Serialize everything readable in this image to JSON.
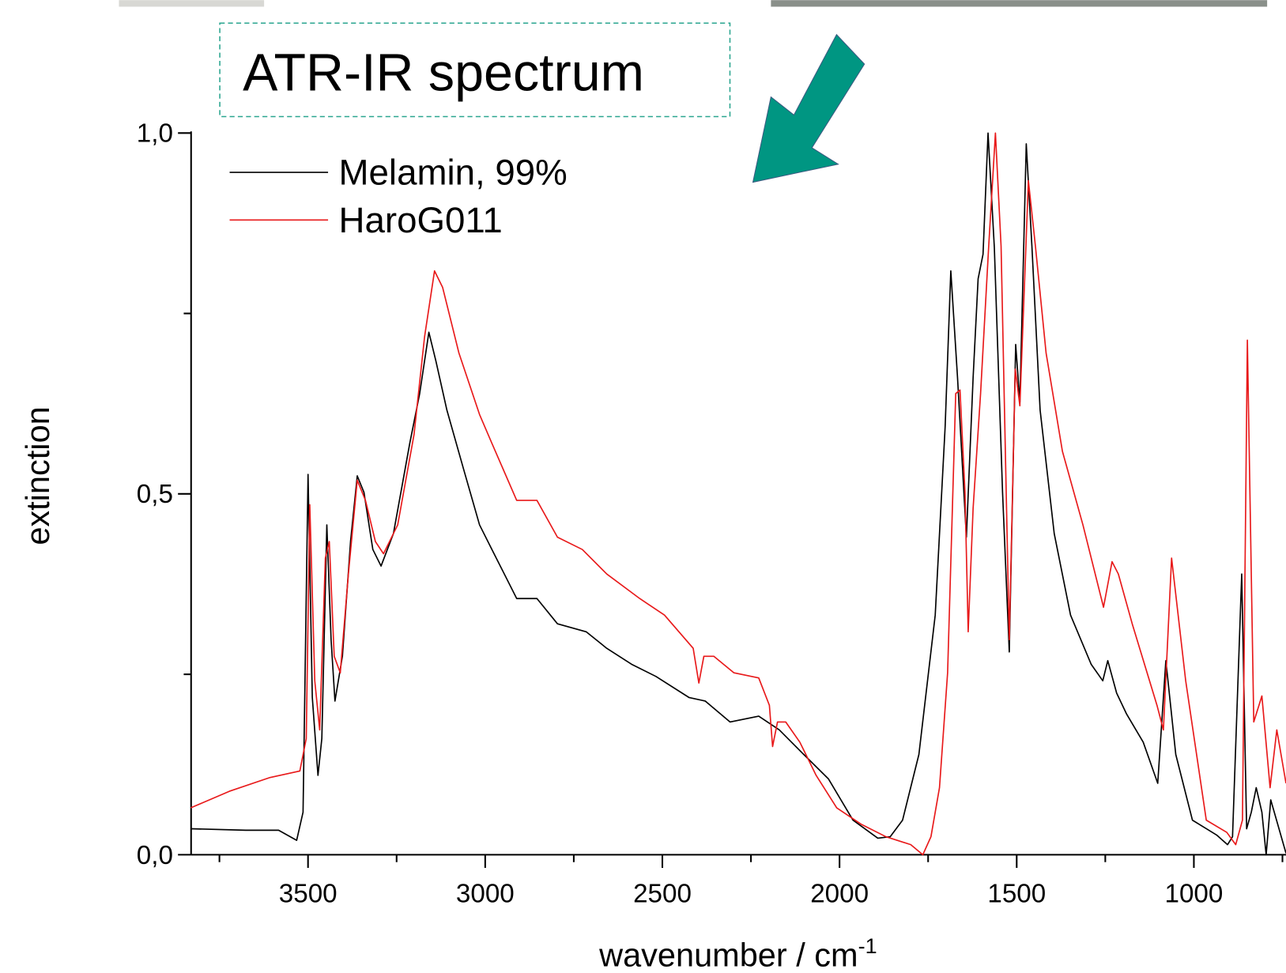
{
  "title": "ATR-IR spectrum",
  "chart_data": {
    "type": "line",
    "y_label": "extinction",
    "x_label": "wavenumber / cm",
    "x_label_sup": "-1",
    "xlim": [
      3830,
      740
    ],
    "ylim": [
      0,
      1.0
    ],
    "xticks": [
      3500,
      3000,
      2500,
      2000,
      1500,
      1000
    ],
    "xticks_minor": [
      3750,
      3250,
      2750,
      2250,
      1750,
      1250,
      750
    ],
    "yticks": [
      {
        "value": 0,
        "label": "0,0"
      },
      {
        "value": 0.5,
        "label": "0,5"
      },
      {
        "value": 1.0,
        "label": "1,0"
      }
    ],
    "yticks_minor": [
      0.25,
      0.75
    ],
    "legend": "upper left",
    "series": [
      {
        "name": "Melamin, 99%",
        "color": "#000000",
        "x": [
          3831,
          3676,
          3583,
          3532,
          3514,
          3500,
          3488,
          3472,
          3461,
          3447,
          3435,
          3424,
          3403,
          3380,
          3361,
          3342,
          3317,
          3294,
          3259,
          3213,
          3185,
          3159,
          3139,
          3108,
          3062,
          3016,
          2981,
          2911,
          2854,
          2796,
          2715,
          2657,
          2587,
          2518,
          2425,
          2379,
          2309,
          2228,
          2170,
          2101,
          2031,
          1962,
          1892,
          1857,
          1822,
          1776,
          1730,
          1702,
          1686,
          1667,
          1642,
          1623,
          1609,
          1595,
          1581,
          1563,
          1540,
          1521,
          1503,
          1491,
          1473,
          1457,
          1434,
          1394,
          1348,
          1290,
          1257,
          1243,
          1218,
          1190,
          1143,
          1102,
          1079,
          1051,
          1004,
          935,
          905,
          891,
          865,
          851,
          838,
          824,
          808,
          796,
          783,
          740
        ],
        "values": [
          0.036,
          0.034,
          0.034,
          0.02,
          0.059,
          0.527,
          0.218,
          0.11,
          0.161,
          0.457,
          0.298,
          0.213,
          0.275,
          0.434,
          0.525,
          0.502,
          0.423,
          0.4,
          0.445,
          0.57,
          0.639,
          0.724,
          0.684,
          0.616,
          0.536,
          0.457,
          0.423,
          0.355,
          0.355,
          0.32,
          0.309,
          0.286,
          0.264,
          0.247,
          0.218,
          0.213,
          0.184,
          0.192,
          0.173,
          0.139,
          0.105,
          0.048,
          0.023,
          0.025,
          0.048,
          0.139,
          0.332,
          0.593,
          0.809,
          0.661,
          0.44,
          0.661,
          0.798,
          0.832,
          1.0,
          0.841,
          0.502,
          0.281,
          0.707,
          0.627,
          0.985,
          0.843,
          0.616,
          0.445,
          0.332,
          0.264,
          0.241,
          0.269,
          0.224,
          0.195,
          0.156,
          0.099,
          0.269,
          0.139,
          0.048,
          0.027,
          0.014,
          0.025,
          0.389,
          0.036,
          0.059,
          0.093,
          0.059,
          0.0,
          0.076,
          0.002
        ]
      },
      {
        "name": "HaroG011",
        "color": "#e8191a",
        "x": [
          3831,
          3722,
          3607,
          3523,
          3505,
          3495,
          3481,
          3467,
          3451,
          3440,
          3426,
          3409,
          3386,
          3361,
          3338,
          3310,
          3287,
          3247,
          3201,
          3171,
          3143,
          3120,
          3074,
          3016,
          2981,
          2911,
          2854,
          2796,
          2726,
          2657,
          2564,
          2494,
          2413,
          2397,
          2383,
          2355,
          2298,
          2228,
          2198,
          2189,
          2175,
          2152,
          2112,
          2066,
          2008,
          1938,
          1869,
          1799,
          1765,
          1742,
          1718,
          1695,
          1672,
          1660,
          1646,
          1637,
          1623,
          1602,
          1579,
          1560,
          1544,
          1521,
          1504,
          1491,
          1467,
          1447,
          1417,
          1371,
          1313,
          1255,
          1231,
          1213,
          1174,
          1104,
          1086,
          1063,
          1023,
          965,
          907,
          882,
          863,
          849,
          831,
          808,
          785,
          766,
          740
        ],
        "values": [
          0.065,
          0.088,
          0.107,
          0.116,
          0.161,
          0.485,
          0.241,
          0.173,
          0.411,
          0.434,
          0.275,
          0.252,
          0.389,
          0.519,
          0.491,
          0.434,
          0.417,
          0.457,
          0.582,
          0.718,
          0.809,
          0.786,
          0.695,
          0.61,
          0.57,
          0.491,
          0.491,
          0.44,
          0.423,
          0.389,
          0.355,
          0.332,
          0.286,
          0.238,
          0.275,
          0.275,
          0.252,
          0.245,
          0.207,
          0.15,
          0.184,
          0.184,
          0.156,
          0.11,
          0.065,
          0.042,
          0.025,
          0.014,
          0.0,
          0.025,
          0.093,
          0.252,
          0.639,
          0.644,
          0.502,
          0.309,
          0.48,
          0.639,
          0.843,
          1.0,
          0.843,
          0.298,
          0.673,
          0.622,
          0.934,
          0.843,
          0.695,
          0.559,
          0.457,
          0.343,
          0.406,
          0.389,
          0.32,
          0.207,
          0.173,
          0.411,
          0.241,
          0.048,
          0.031,
          0.014,
          0.048,
          0.713,
          0.184,
          0.22,
          0.093,
          0.173,
          0.099
        ]
      }
    ]
  }
}
